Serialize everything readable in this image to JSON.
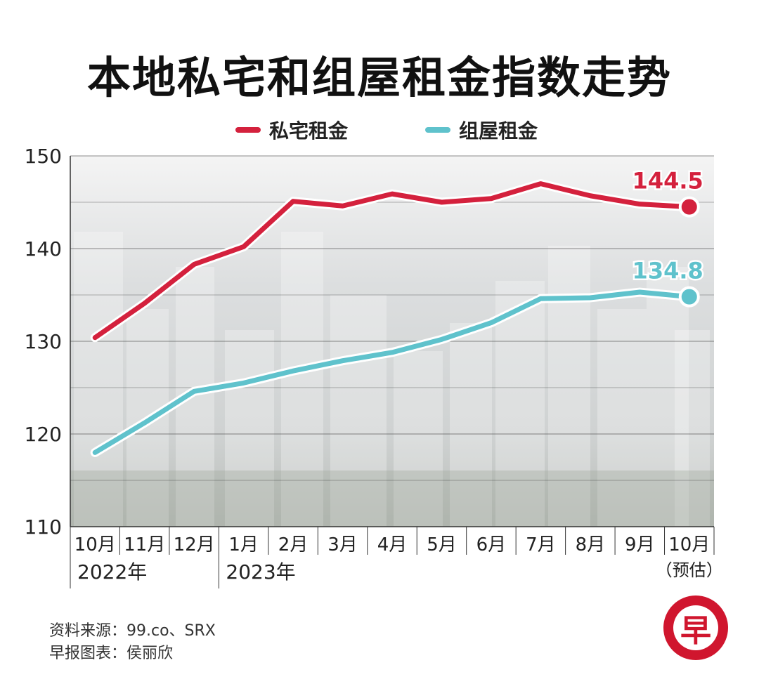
{
  "title": "本地私宅和组屋租金指数走势",
  "colors": {
    "private": "#d4213d",
    "hdb": "#5fc2cc",
    "grid": "#333333",
    "photo_bg": "#d9dadb",
    "logo": "#d0162e"
  },
  "chart_data": {
    "type": "line",
    "title": "本地私宅和组屋租金指数走势",
    "categories": [
      "10月",
      "11月",
      "12月",
      "1月",
      "2月",
      "3月",
      "4月",
      "5月",
      "6月",
      "7月",
      "8月",
      "9月",
      "10月"
    ],
    "category_sublabels": [
      "",
      "",
      "",
      "",
      "",
      "",
      "",
      "",
      "",
      "",
      "",
      "",
      "（预估）"
    ],
    "year_labels": [
      {
        "label": "2022年",
        "start_index": 0
      },
      {
        "label": "2023年",
        "start_index": 3
      }
    ],
    "series": [
      {
        "name": "私宅租金",
        "color": "#d4213d",
        "values": [
          130.4,
          134.1,
          138.3,
          140.2,
          145.1,
          144.6,
          145.9,
          145.0,
          145.4,
          147.0,
          145.7,
          144.8,
          144.5
        ],
        "end_label": "144.5"
      },
      {
        "name": "组屋租金",
        "color": "#5fc2cc",
        "values": [
          118.0,
          121.2,
          124.6,
          125.5,
          126.8,
          127.9,
          128.8,
          130.2,
          132.0,
          134.6,
          134.7,
          135.3,
          134.8
        ],
        "end_label": "134.8"
      }
    ],
    "ylim": [
      110,
      150
    ],
    "yticks": [
      110,
      120,
      130,
      140,
      150
    ],
    "grid": true,
    "legend": "top-center"
  },
  "legend": {
    "private": "私宅租金",
    "hdb": "组屋租金"
  },
  "footer": {
    "source": "资料来源：99.co、SRX",
    "credit": "早报图表：侯丽欣"
  },
  "logo": {
    "char": "早"
  }
}
